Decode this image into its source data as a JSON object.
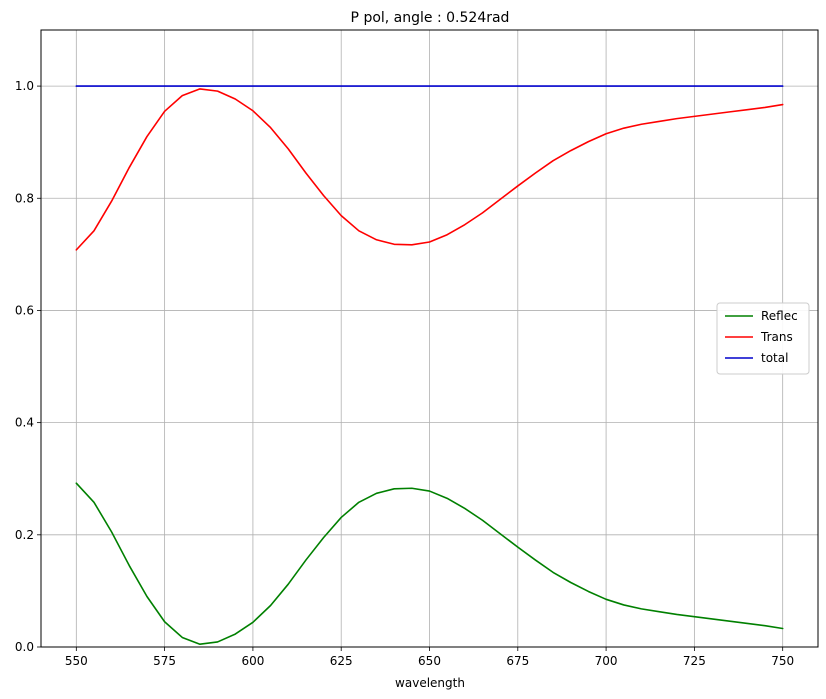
{
  "chart_data": {
    "type": "line",
    "title": "P pol, angle : 0.524rad",
    "xlabel": "wavelength",
    "ylabel": "",
    "xlim": [
      540,
      760
    ],
    "ylim": [
      0.0,
      1.1
    ],
    "xticks": [
      550,
      575,
      600,
      625,
      650,
      675,
      700,
      725,
      750
    ],
    "xtick_labels": [
      "550",
      "575",
      "600",
      "625",
      "650",
      "675",
      "700",
      "725",
      "750"
    ],
    "yticks": [
      0.0,
      0.2,
      0.4,
      0.6,
      0.8,
      1.0
    ],
    "ytick_labels": [
      "0.0",
      "0.2",
      "0.4",
      "0.6",
      "0.8",
      "1.0"
    ],
    "grid": true,
    "legend_position": "right",
    "x": [
      550,
      555,
      560,
      565,
      570,
      575,
      580,
      585,
      590,
      595,
      600,
      605,
      610,
      615,
      620,
      625,
      630,
      635,
      640,
      645,
      650,
      655,
      660,
      665,
      670,
      675,
      680,
      685,
      690,
      695,
      700,
      705,
      710,
      715,
      720,
      725,
      730,
      735,
      740,
      745,
      750
    ],
    "series": [
      {
        "name": "Reflec",
        "color": "#008000",
        "values": [
          0.292,
          0.258,
          0.205,
          0.145,
          0.09,
          0.045,
          0.017,
          0.005,
          0.009,
          0.023,
          0.044,
          0.074,
          0.112,
          0.155,
          0.195,
          0.231,
          0.258,
          0.274,
          0.282,
          0.283,
          0.278,
          0.265,
          0.247,
          0.226,
          0.202,
          0.178,
          0.155,
          0.133,
          0.115,
          0.099,
          0.085,
          0.075,
          0.068,
          0.063,
          0.058,
          0.054,
          0.05,
          0.046,
          0.042,
          0.038,
          0.033
        ]
      },
      {
        "name": "Trans",
        "color": "#ff0000",
        "values": [
          0.708,
          0.742,
          0.795,
          0.855,
          0.91,
          0.955,
          0.983,
          0.995,
          0.991,
          0.977,
          0.956,
          0.926,
          0.888,
          0.845,
          0.805,
          0.769,
          0.742,
          0.726,
          0.718,
          0.717,
          0.722,
          0.735,
          0.753,
          0.774,
          0.798,
          0.822,
          0.845,
          0.867,
          0.885,
          0.901,
          0.915,
          0.925,
          0.932,
          0.937,
          0.942,
          0.946,
          0.95,
          0.954,
          0.958,
          0.962,
          0.967
        ]
      },
      {
        "name": "total",
        "color": "#0000cc",
        "values": [
          1.0,
          1.0,
          1.0,
          1.0,
          1.0,
          1.0,
          1.0,
          1.0,
          1.0,
          1.0,
          1.0,
          1.0,
          1.0,
          1.0,
          1.0,
          1.0,
          1.0,
          1.0,
          1.0,
          1.0,
          1.0,
          1.0,
          1.0,
          1.0,
          1.0,
          1.0,
          1.0,
          1.0,
          1.0,
          1.0,
          1.0,
          1.0,
          1.0,
          1.0,
          1.0,
          1.0,
          1.0,
          1.0,
          1.0,
          1.0,
          1.0
        ]
      }
    ]
  }
}
